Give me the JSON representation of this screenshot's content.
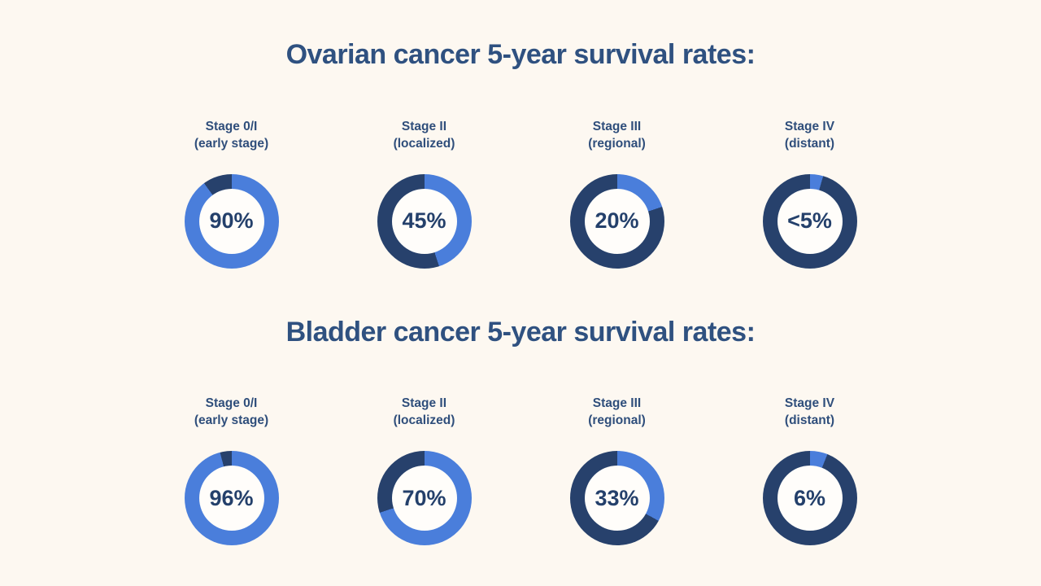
{
  "colors": {
    "background": "#FDF8F1",
    "title": "#2F5180",
    "label": "#2F4E7B",
    "percent": "#24406B",
    "segment_value": "#4A7EDB",
    "segment_remainder": "#27416C",
    "donut_hole": "#FFFDFA"
  },
  "sections": [
    {
      "title": "Ovarian cancer 5-year survival rates:",
      "charts": [
        {
          "stage": "Stage 0/I",
          "qualifier": "(early stage)",
          "display": "90%",
          "value_pct": 90
        },
        {
          "stage": "Stage II",
          "qualifier": "(localized)",
          "display": "45%",
          "value_pct": 45
        },
        {
          "stage": "Stage III",
          "qualifier": "(regional)",
          "display": "20%",
          "value_pct": 20
        },
        {
          "stage": "Stage IV",
          "qualifier": "(distant)",
          "display": "<5%",
          "value_pct": 4.5
        }
      ]
    },
    {
      "title": "Bladder cancer 5-year survival rates:",
      "charts": [
        {
          "stage": "Stage 0/I",
          "qualifier": "(early stage)",
          "display": "96%",
          "value_pct": 96
        },
        {
          "stage": "Stage II",
          "qualifier": "(localized)",
          "display": "70%",
          "value_pct": 70
        },
        {
          "stage": "Stage III",
          "qualifier": "(regional)",
          "display": "33%",
          "value_pct": 33
        },
        {
          "stage": "Stage IV",
          "qualifier": "(distant)",
          "display": "6%",
          "value_pct": 6
        }
      ]
    }
  ],
  "chart_data": [
    {
      "type": "pie",
      "style": "donut",
      "title": "Ovarian cancer 5-year survival rates:",
      "categories": [
        "Stage 0/I (early stage)",
        "Stage II (localized)",
        "Stage III (regional)",
        "Stage IV (distant)"
      ],
      "values": [
        90,
        45,
        20,
        4.5
      ],
      "value_labels": [
        "90%",
        "45%",
        "20%",
        "<5%"
      ],
      "segment_colors": {
        "survival": "#4A7EDB",
        "remainder": "#27416C"
      },
      "layout": "four donuts in a row; filled arc starts at 12 o'clock and sweeps clockwise; percentage shown in donut hole"
    },
    {
      "type": "pie",
      "style": "donut",
      "title": "Bladder cancer 5-year survival rates:",
      "categories": [
        "Stage 0/I (early stage)",
        "Stage II (localized)",
        "Stage III (regional)",
        "Stage IV (distant)"
      ],
      "values": [
        96,
        70,
        33,
        6
      ],
      "value_labels": [
        "96%",
        "70%",
        "33%",
        "6%"
      ],
      "segment_colors": {
        "survival": "#4A7EDB",
        "remainder": "#27416C"
      },
      "layout": "four donuts in a row; filled arc starts at 12 o'clock and sweeps clockwise; percentage shown in donut hole"
    }
  ]
}
